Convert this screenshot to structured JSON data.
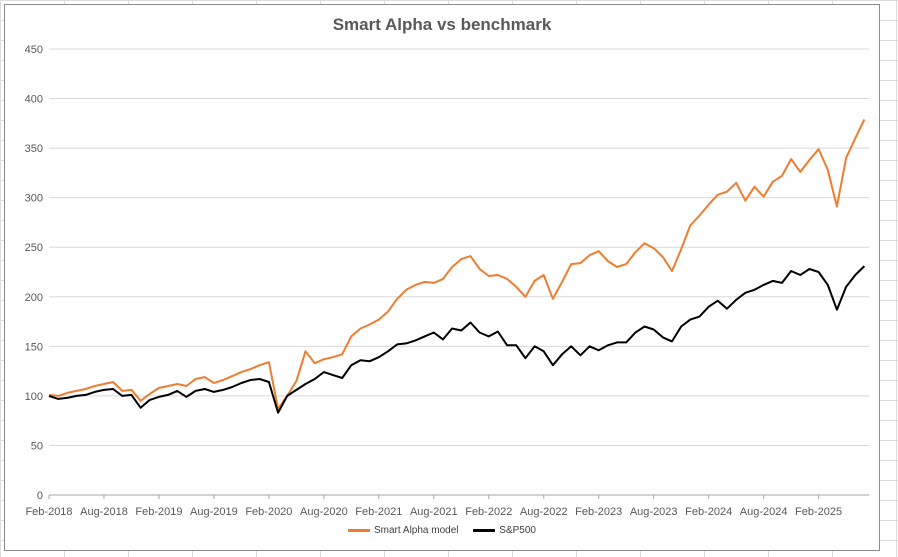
{
  "chart_data": {
    "type": "line",
    "title": "Smart Alpha vs benchmark",
    "xlabel": "",
    "ylabel": "",
    "ylim": [
      0,
      450
    ],
    "yticks": [
      0,
      50,
      100,
      150,
      200,
      250,
      300,
      350,
      400,
      450
    ],
    "xlim": [
      "2018-02",
      "2025-07"
    ],
    "xticks": [
      "Feb-2018",
      "Aug-2018",
      "Feb-2019",
      "Aug-2019",
      "Feb-2020",
      "Aug-2020",
      "Feb-2021",
      "Aug-2021",
      "Feb-2022",
      "Aug-2022",
      "Feb-2023",
      "Aug-2023",
      "Feb-2024",
      "Aug-2024",
      "Feb-2025"
    ],
    "grid": "horizontal",
    "legend_position": "bottom",
    "series": [
      {
        "name": "Smart Alpha model",
        "color": "#ED7D31",
        "points": [
          [
            "2018-02",
            101
          ],
          [
            "2018-03",
            100
          ],
          [
            "2018-04",
            103
          ],
          [
            "2018-05",
            105
          ],
          [
            "2018-06",
            107
          ],
          [
            "2018-07",
            110
          ],
          [
            "2018-08",
            112
          ],
          [
            "2018-09",
            114
          ],
          [
            "2018-10",
            105
          ],
          [
            "2018-11",
            106
          ],
          [
            "2018-12",
            95
          ],
          [
            "2019-01",
            102
          ],
          [
            "2019-02",
            108
          ],
          [
            "2019-03",
            110
          ],
          [
            "2019-04",
            112
          ],
          [
            "2019-05",
            110
          ],
          [
            "2019-06",
            117
          ],
          [
            "2019-07",
            119
          ],
          [
            "2019-08",
            113
          ],
          [
            "2019-09",
            116
          ],
          [
            "2019-10",
            120
          ],
          [
            "2019-11",
            124
          ],
          [
            "2019-12",
            127
          ],
          [
            "2020-01",
            131
          ],
          [
            "2020-02",
            134
          ],
          [
            "2020-03",
            87
          ],
          [
            "2020-04",
            100
          ],
          [
            "2020-05",
            115
          ],
          [
            "2020-06",
            145
          ],
          [
            "2020-07",
            133
          ],
          [
            "2020-08",
            137
          ],
          [
            "2020-09",
            139
          ],
          [
            "2020-10",
            142
          ],
          [
            "2020-11",
            160
          ],
          [
            "2020-12",
            168
          ],
          [
            "2021-01",
            172
          ],
          [
            "2021-02",
            177
          ],
          [
            "2021-03",
            185
          ],
          [
            "2021-04",
            198
          ],
          [
            "2021-05",
            207
          ],
          [
            "2021-06",
            212
          ],
          [
            "2021-07",
            215
          ],
          [
            "2021-08",
            214
          ],
          [
            "2021-09",
            218
          ],
          [
            "2021-10",
            230
          ],
          [
            "2021-11",
            238
          ],
          [
            "2021-12",
            241
          ],
          [
            "2022-01",
            228
          ],
          [
            "2022-02",
            221
          ],
          [
            "2022-03",
            222
          ],
          [
            "2022-04",
            218
          ],
          [
            "2022-05",
            210
          ],
          [
            "2022-06",
            200
          ],
          [
            "2022-07",
            216
          ],
          [
            "2022-08",
            222
          ],
          [
            "2022-09",
            198
          ],
          [
            "2022-10",
            215
          ],
          [
            "2022-11",
            233
          ],
          [
            "2022-12",
            234
          ],
          [
            "2023-01",
            242
          ],
          [
            "2023-02",
            246
          ],
          [
            "2023-03",
            236
          ],
          [
            "2023-04",
            230
          ],
          [
            "2023-05",
            233
          ],
          [
            "2023-06",
            245
          ],
          [
            "2023-07",
            254
          ],
          [
            "2023-08",
            249
          ],
          [
            "2023-09",
            240
          ],
          [
            "2023-10",
            226
          ],
          [
            "2023-11",
            248
          ],
          [
            "2023-12",
            272
          ],
          [
            "2024-01",
            282
          ],
          [
            "2024-02",
            293
          ],
          [
            "2024-03",
            303
          ],
          [
            "2024-04",
            306
          ],
          [
            "2024-05",
            315
          ],
          [
            "2024-06",
            297
          ],
          [
            "2024-07",
            311
          ],
          [
            "2024-08",
            301
          ],
          [
            "2024-09",
            316
          ],
          [
            "2024-10",
            322
          ],
          [
            "2024-11",
            339
          ],
          [
            "2024-12",
            326
          ],
          [
            "2025-01",
            338
          ],
          [
            "2025-02",
            349
          ],
          [
            "2025-03",
            328
          ],
          [
            "2025-04",
            291
          ],
          [
            "2025-05",
            340
          ],
          [
            "2025-06",
            360
          ],
          [
            "2025-07",
            379
          ]
        ]
      },
      {
        "name": "S&P500",
        "color": "#000000",
        "points": [
          [
            "2018-02",
            100
          ],
          [
            "2018-03",
            97
          ],
          [
            "2018-04",
            98
          ],
          [
            "2018-05",
            100
          ],
          [
            "2018-06",
            101
          ],
          [
            "2018-07",
            104
          ],
          [
            "2018-08",
            106
          ],
          [
            "2018-09",
            107
          ],
          [
            "2018-10",
            100
          ],
          [
            "2018-11",
            101
          ],
          [
            "2018-12",
            88
          ],
          [
            "2019-01",
            96
          ],
          [
            "2019-02",
            99
          ],
          [
            "2019-03",
            101
          ],
          [
            "2019-04",
            105
          ],
          [
            "2019-05",
            99
          ],
          [
            "2019-06",
            105
          ],
          [
            "2019-07",
            107
          ],
          [
            "2019-08",
            104
          ],
          [
            "2019-09",
            106
          ],
          [
            "2019-10",
            109
          ],
          [
            "2019-11",
            113
          ],
          [
            "2019-12",
            116
          ],
          [
            "2020-01",
            117
          ],
          [
            "2020-02",
            114
          ],
          [
            "2020-03",
            83
          ],
          [
            "2020-04",
            100
          ],
          [
            "2020-05",
            106
          ],
          [
            "2020-06",
            112
          ],
          [
            "2020-07",
            117
          ],
          [
            "2020-08",
            124
          ],
          [
            "2020-09",
            121
          ],
          [
            "2020-10",
            118
          ],
          [
            "2020-11",
            131
          ],
          [
            "2020-12",
            136
          ],
          [
            "2021-01",
            135
          ],
          [
            "2021-02",
            139
          ],
          [
            "2021-03",
            145
          ],
          [
            "2021-04",
            152
          ],
          [
            "2021-05",
            153
          ],
          [
            "2021-06",
            156
          ],
          [
            "2021-07",
            160
          ],
          [
            "2021-08",
            164
          ],
          [
            "2021-09",
            157
          ],
          [
            "2021-10",
            168
          ],
          [
            "2021-11",
            166
          ],
          [
            "2021-12",
            174
          ],
          [
            "2022-01",
            164
          ],
          [
            "2022-02",
            160
          ],
          [
            "2022-03",
            165
          ],
          [
            "2022-04",
            151
          ],
          [
            "2022-05",
            151
          ],
          [
            "2022-06",
            138
          ],
          [
            "2022-07",
            150
          ],
          [
            "2022-08",
            145
          ],
          [
            "2022-09",
            131
          ],
          [
            "2022-10",
            142
          ],
          [
            "2022-11",
            150
          ],
          [
            "2022-12",
            141
          ],
          [
            "2023-01",
            150
          ],
          [
            "2023-02",
            146
          ],
          [
            "2023-03",
            151
          ],
          [
            "2023-04",
            154
          ],
          [
            "2023-05",
            154
          ],
          [
            "2023-06",
            164
          ],
          [
            "2023-07",
            170
          ],
          [
            "2023-08",
            167
          ],
          [
            "2023-09",
            159
          ],
          [
            "2023-10",
            155
          ],
          [
            "2023-11",
            170
          ],
          [
            "2023-12",
            177
          ],
          [
            "2024-01",
            180
          ],
          [
            "2024-02",
            190
          ],
          [
            "2024-03",
            196
          ],
          [
            "2024-04",
            188
          ],
          [
            "2024-05",
            197
          ],
          [
            "2024-06",
            204
          ],
          [
            "2024-07",
            207
          ],
          [
            "2024-08",
            212
          ],
          [
            "2024-09",
            216
          ],
          [
            "2024-10",
            214
          ],
          [
            "2024-11",
            226
          ],
          [
            "2024-12",
            222
          ],
          [
            "2025-01",
            228
          ],
          [
            "2025-02",
            225
          ],
          [
            "2025-03",
            212
          ],
          [
            "2025-04",
            187
          ],
          [
            "2025-05",
            210
          ],
          [
            "2025-06",
            222
          ],
          [
            "2025-07",
            231
          ]
        ]
      }
    ]
  }
}
